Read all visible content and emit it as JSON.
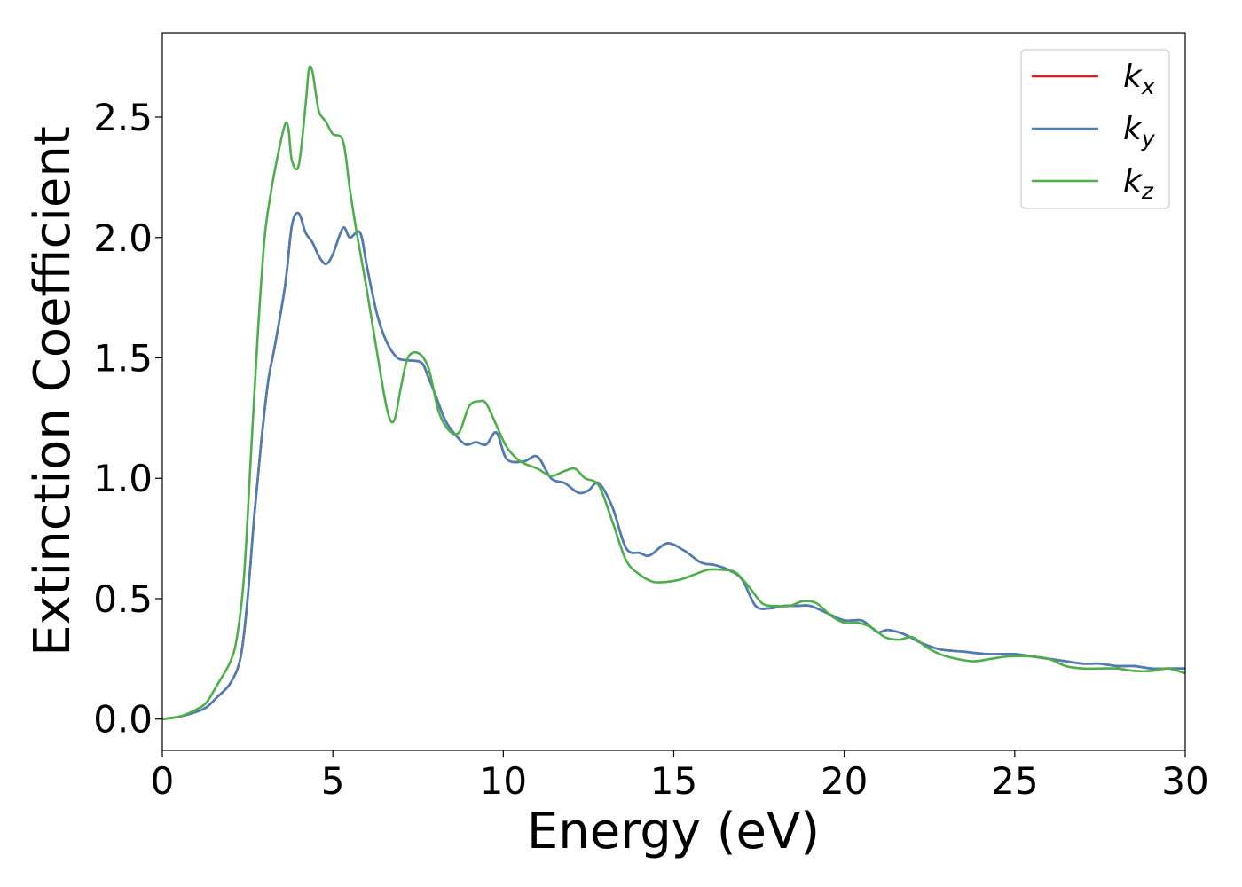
{
  "chart_data": {
    "type": "line",
    "title": "",
    "xlabel": "Energy (eV)",
    "ylabel": "Extinction Coefficient",
    "xlim": [
      0,
      30
    ],
    "ylim": [
      -0.13,
      2.85
    ],
    "xticks": [
      0,
      5,
      10,
      15,
      20,
      25,
      30
    ],
    "xtick_labels": [
      "0",
      "5",
      "10",
      "15",
      "20",
      "25",
      "30"
    ],
    "yticks": [
      0.0,
      0.5,
      1.0,
      1.5,
      2.0,
      2.5
    ],
    "ytick_labels": [
      "0.0",
      "0.5",
      "1.0",
      "1.5",
      "2.0",
      "2.5"
    ],
    "grid": false,
    "legend_position": "top-right",
    "series": [
      {
        "name": "k_x",
        "legend_base": "k",
        "legend_sub": "x",
        "color": "#e41a1c",
        "x": [
          0,
          0.5,
          1,
          1.3,
          1.6,
          2,
          2.3,
          2.5,
          2.7,
          2.9,
          3.1,
          3.3,
          3.6,
          3.8,
          4,
          4.2,
          4.4,
          4.6,
          4.8,
          5,
          5.3,
          5.5,
          5.8,
          6,
          6.3,
          6.6,
          6.9,
          7.2,
          7.6,
          7.8,
          8,
          8.3,
          8.6,
          8.9,
          9.2,
          9.5,
          9.8,
          10.1,
          10.6,
          11,
          11.4,
          11.8,
          12.2,
          12.5,
          12.8,
          13.2,
          13.6,
          14,
          14.3,
          14.8,
          15.3,
          15.8,
          16.2,
          16.6,
          17,
          17.4,
          17.8,
          18.2,
          18.6,
          19,
          19.5,
          20,
          20.5,
          20.8,
          21,
          21.3,
          21.8,
          22.2,
          22.8,
          23.5,
          24.2,
          25,
          25.5,
          26,
          26.5,
          27,
          27.5,
          28,
          28.5,
          29,
          29.5,
          30
        ],
        "y": [
          0,
          0.01,
          0.03,
          0.05,
          0.09,
          0.15,
          0.26,
          0.5,
          0.85,
          1.15,
          1.4,
          1.55,
          1.8,
          2.05,
          2.1,
          2.02,
          1.98,
          1.92,
          1.89,
          1.93,
          2.04,
          2.0,
          2.02,
          1.88,
          1.68,
          1.56,
          1.5,
          1.49,
          1.48,
          1.42,
          1.35,
          1.24,
          1.18,
          1.14,
          1.15,
          1.14,
          1.19,
          1.08,
          1.07,
          1.09,
          1.0,
          0.98,
          0.94,
          0.95,
          0.98,
          0.88,
          0.71,
          0.69,
          0.68,
          0.73,
          0.7,
          0.65,
          0.64,
          0.62,
          0.58,
          0.47,
          0.46,
          0.47,
          0.47,
          0.47,
          0.44,
          0.41,
          0.41,
          0.38,
          0.36,
          0.37,
          0.35,
          0.32,
          0.29,
          0.28,
          0.27,
          0.27,
          0.26,
          0.25,
          0.24,
          0.23,
          0.23,
          0.22,
          0.22,
          0.21,
          0.21,
          0.21
        ]
      },
      {
        "name": "k_y",
        "legend_base": "k",
        "legend_sub": "y",
        "color": "#4a7eb5",
        "x": [
          0,
          0.5,
          1,
          1.3,
          1.6,
          2,
          2.3,
          2.5,
          2.7,
          2.9,
          3.1,
          3.3,
          3.6,
          3.8,
          4,
          4.2,
          4.4,
          4.6,
          4.8,
          5,
          5.3,
          5.5,
          5.8,
          6,
          6.3,
          6.6,
          6.9,
          7.2,
          7.6,
          7.8,
          8,
          8.3,
          8.6,
          8.9,
          9.2,
          9.5,
          9.8,
          10.1,
          10.6,
          11,
          11.4,
          11.8,
          12.2,
          12.5,
          12.8,
          13.2,
          13.6,
          14,
          14.3,
          14.8,
          15.3,
          15.8,
          16.2,
          16.6,
          17,
          17.4,
          17.8,
          18.2,
          18.6,
          19,
          19.5,
          20,
          20.5,
          20.8,
          21,
          21.3,
          21.8,
          22.2,
          22.8,
          23.5,
          24.2,
          25,
          25.5,
          26,
          26.5,
          27,
          27.5,
          28,
          28.5,
          29,
          29.5,
          30
        ],
        "y": [
          0,
          0.01,
          0.03,
          0.05,
          0.09,
          0.15,
          0.26,
          0.5,
          0.85,
          1.15,
          1.4,
          1.55,
          1.8,
          2.05,
          2.1,
          2.02,
          1.98,
          1.92,
          1.89,
          1.93,
          2.04,
          2.0,
          2.02,
          1.88,
          1.68,
          1.56,
          1.5,
          1.49,
          1.48,
          1.42,
          1.35,
          1.24,
          1.18,
          1.14,
          1.15,
          1.14,
          1.19,
          1.08,
          1.07,
          1.09,
          1.0,
          0.98,
          0.94,
          0.95,
          0.98,
          0.88,
          0.71,
          0.69,
          0.68,
          0.73,
          0.7,
          0.65,
          0.64,
          0.62,
          0.58,
          0.47,
          0.46,
          0.47,
          0.47,
          0.47,
          0.44,
          0.41,
          0.41,
          0.38,
          0.36,
          0.37,
          0.35,
          0.32,
          0.29,
          0.28,
          0.27,
          0.27,
          0.26,
          0.25,
          0.24,
          0.23,
          0.23,
          0.22,
          0.22,
          0.21,
          0.21,
          0.21
        ]
      },
      {
        "name": "k_z",
        "legend_base": "k",
        "legend_sub": "z",
        "color": "#4daf4a",
        "x": [
          0,
          0.5,
          1,
          1.3,
          1.6,
          2,
          2.2,
          2.4,
          2.6,
          2.8,
          3,
          3.2,
          3.4,
          3.6,
          3.7,
          3.8,
          4,
          4.2,
          4.3,
          4.4,
          4.5,
          4.6,
          4.8,
          5,
          5.3,
          5.5,
          5.7,
          6,
          6.3,
          6.6,
          6.8,
          7,
          7.2,
          7.5,
          7.8,
          8.1,
          8.4,
          8.7,
          9,
          9.3,
          9.5,
          9.8,
          10.1,
          10.5,
          11,
          11.4,
          11.8,
          12.1,
          12.4,
          12.8,
          13.2,
          13.6,
          14,
          14.4,
          14.8,
          15.2,
          15.6,
          16,
          16.4,
          16.8,
          17.2,
          17.6,
          18,
          18.4,
          18.8,
          19.2,
          19.6,
          20,
          20.4,
          20.8,
          21.2,
          21.6,
          22,
          22.4,
          22.8,
          23.3,
          23.8,
          24.3,
          24.8,
          25.5,
          26,
          26.5,
          27,
          27.5,
          28,
          28.5,
          29,
          29.5,
          30
        ],
        "y": [
          0,
          0.01,
          0.04,
          0.07,
          0.14,
          0.24,
          0.35,
          0.6,
          1.1,
          1.6,
          2.0,
          2.2,
          2.35,
          2.47,
          2.45,
          2.32,
          2.3,
          2.55,
          2.7,
          2.69,
          2.6,
          2.52,
          2.48,
          2.43,
          2.4,
          2.2,
          2.02,
          1.78,
          1.52,
          1.28,
          1.24,
          1.38,
          1.5,
          1.52,
          1.46,
          1.28,
          1.2,
          1.19,
          1.3,
          1.32,
          1.31,
          1.22,
          1.13,
          1.07,
          1.04,
          1.01,
          1.03,
          1.04,
          1.0,
          0.97,
          0.82,
          0.66,
          0.6,
          0.57,
          0.57,
          0.58,
          0.6,
          0.62,
          0.62,
          0.61,
          0.55,
          0.48,
          0.47,
          0.47,
          0.49,
          0.48,
          0.43,
          0.4,
          0.4,
          0.38,
          0.34,
          0.33,
          0.34,
          0.3,
          0.27,
          0.25,
          0.24,
          0.25,
          0.26,
          0.26,
          0.25,
          0.22,
          0.21,
          0.21,
          0.21,
          0.2,
          0.2,
          0.21,
          0.19
        ]
      }
    ]
  }
}
